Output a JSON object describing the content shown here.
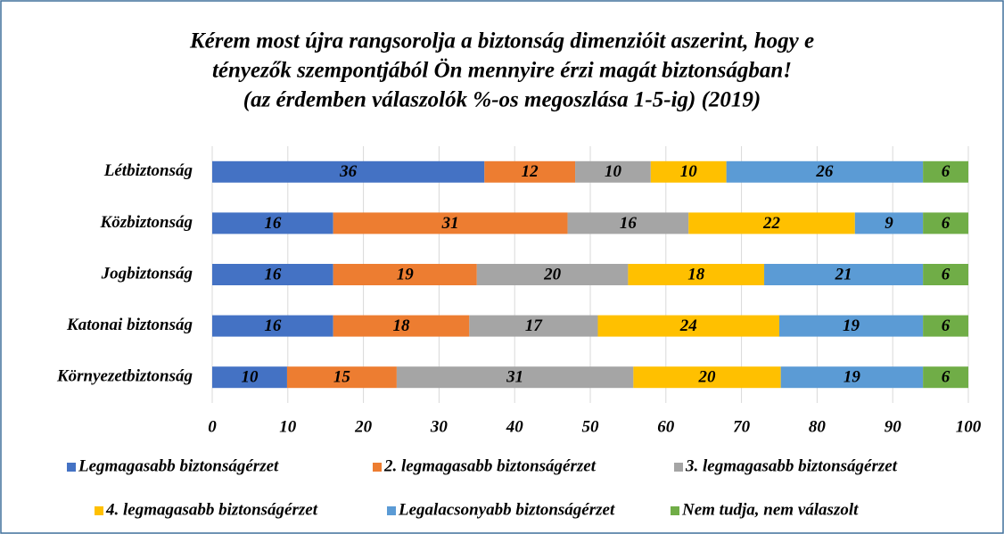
{
  "chart_data": {
    "type": "stacked-barh",
    "title": [
      "Kérem most újra rangsorolja a biztonság dimenzióit aszerint, hogy e",
      "tényezők szempontjából Ön mennyire érzi magát biztonságban!",
      "(az érdemben válaszolók %-os megoszlása 1-5-ig) (2019)"
    ],
    "categories": [
      "Létbiztonság",
      "Közbiztonság",
      "Jogbiztonság",
      "Katonai biztonság",
      "Környezetbiztonság"
    ],
    "series": [
      {
        "name": "Legmagasabb biztonságérzet",
        "color": "#4472c4",
        "values": [
          36,
          16,
          16,
          16,
          9.9
        ],
        "value_labels": [
          "36",
          "16",
          "16",
          "16",
          "10"
        ]
      },
      {
        "name": "2. legmagasabb biztonságérzet",
        "color": "#ed7d31",
        "values": [
          12,
          31,
          19,
          18,
          14.5
        ],
        "value_labels": [
          "12",
          "31",
          "19",
          "18",
          "15"
        ]
      },
      {
        "name": "3. legmagasabb biztonságérzet",
        "color": "#a5a5a5",
        "values": [
          10,
          16,
          20,
          17,
          31.3
        ],
        "value_labels": [
          "10",
          "16",
          "20",
          "17",
          "31"
        ]
      },
      {
        "name": "4. legmagasabb biztonságérzet",
        "color": "#ffc000",
        "values": [
          10,
          22,
          18,
          24,
          19.5
        ],
        "value_labels": [
          "10",
          "22",
          "18",
          "24",
          "20"
        ]
      },
      {
        "name": "Legalacsonyabb biztonságérzet",
        "color": "#5b9bd5",
        "values": [
          26,
          9,
          21,
          19,
          18.8
        ],
        "value_labels": [
          "26",
          "9",
          "21",
          "19",
          "19"
        ]
      },
      {
        "name": "Nem tudja, nem válaszolt",
        "color": "#70ad47",
        "values": [
          6,
          6,
          6,
          6,
          6
        ],
        "value_labels": [
          "6",
          "6",
          "6",
          "6",
          "6"
        ]
      }
    ],
    "xlim": [
      0,
      100
    ],
    "xticks": [
      0,
      10,
      20,
      30,
      40,
      50,
      60,
      70,
      80,
      90,
      100
    ],
    "grid": true,
    "legend": "bottom"
  }
}
